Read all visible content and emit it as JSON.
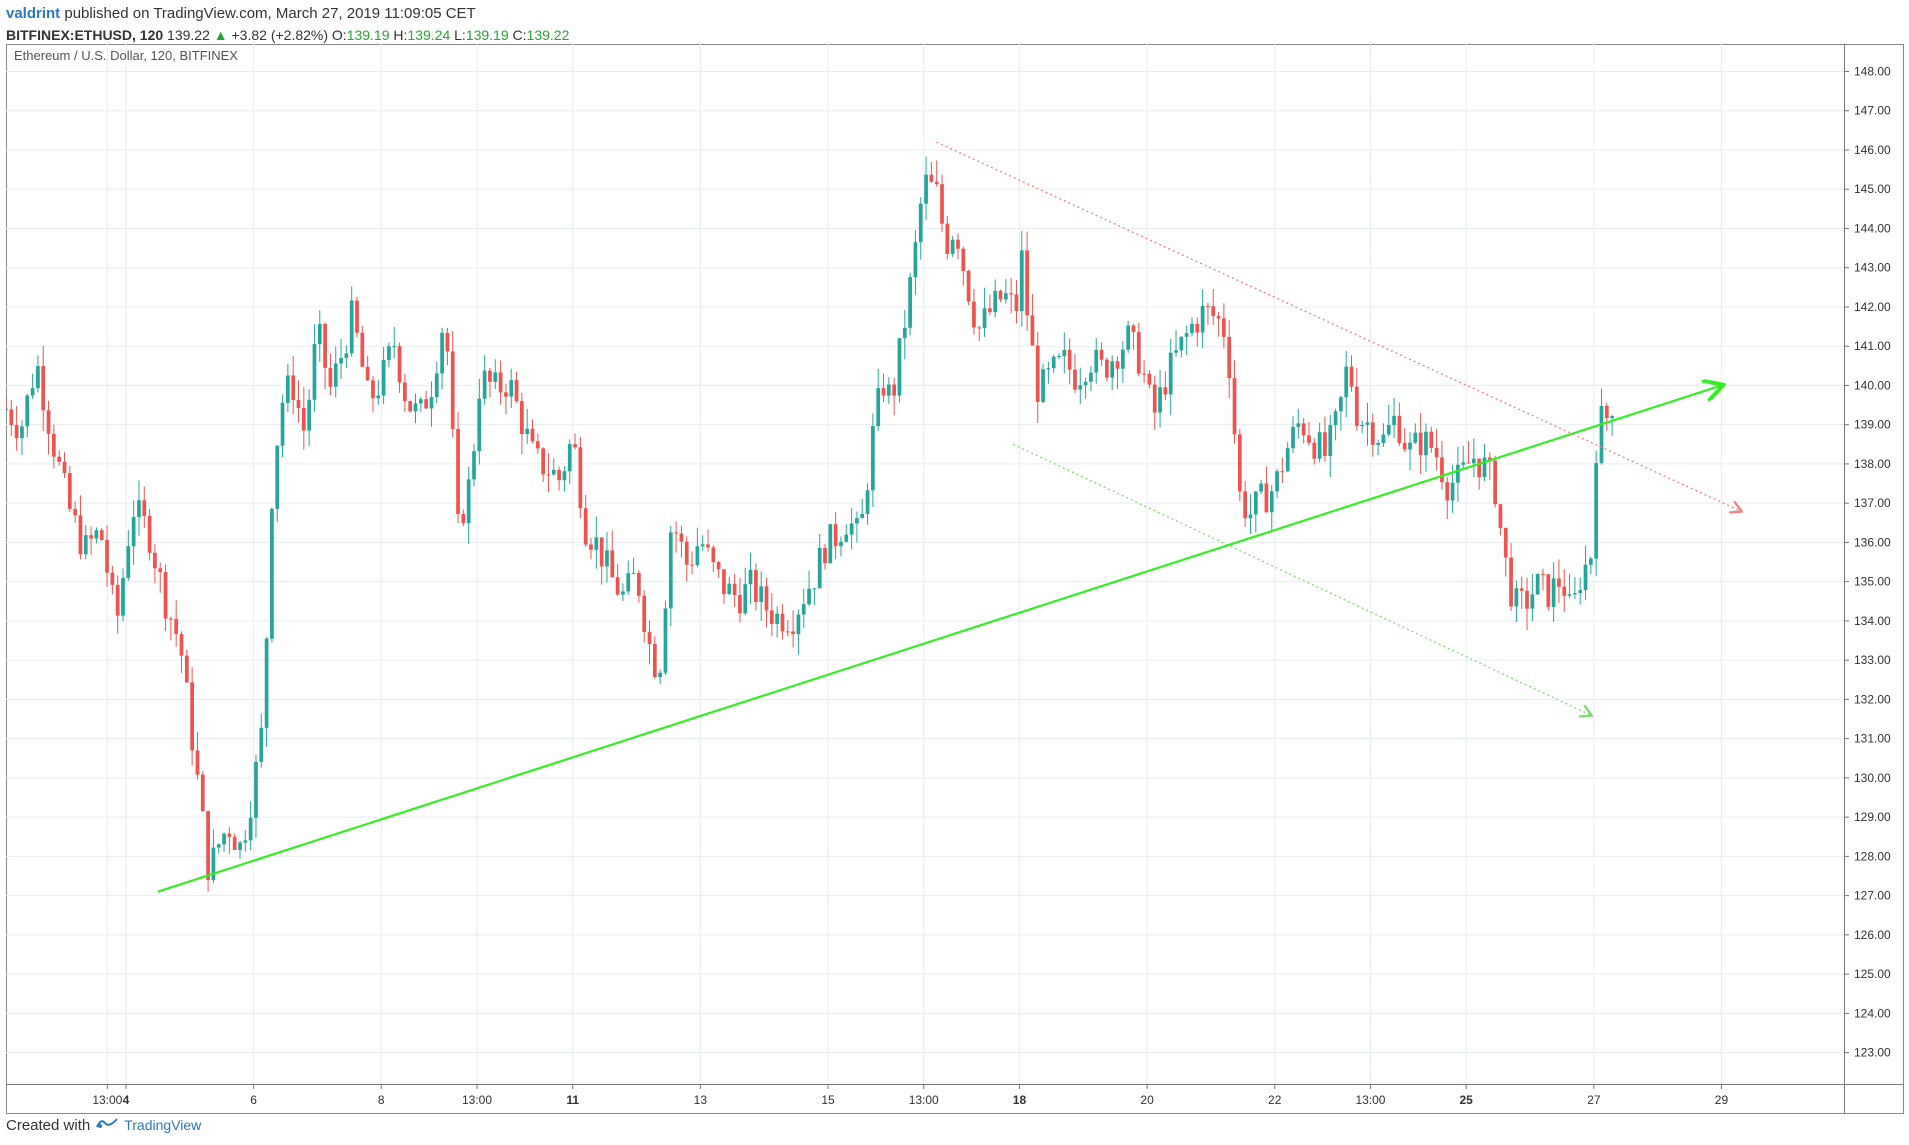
{
  "header": {
    "user": "valdrint",
    "published": "published on TradingView.com, March 27, 2019 11:09:05 CET",
    "symbol": "BITFINEX:ETHUSD, 120",
    "last": "139.22",
    "change_arrow": "▲",
    "change": "+3.82 (+2.82%)",
    "open_label": "O:",
    "open": "139.19",
    "high_label": "H:",
    "high": "139.24",
    "low_label": "L:",
    "low": "139.19",
    "close_label": "C:",
    "close": "139.22"
  },
  "chart_data": {
    "type": "candlestick",
    "title": "Ethereum / U.S. Dollar, 120, BITFINEX",
    "ylim": [
      122.2,
      148.7
    ],
    "y_ticks": [
      "123.00",
      "124.00",
      "125.00",
      "126.00",
      "127.00",
      "128.00",
      "129.00",
      "130.00",
      "131.00",
      "132.00",
      "133.00",
      "134.00",
      "135.00",
      "136.00",
      "137.00",
      "138.00",
      "139.00",
      "140.00",
      "141.00",
      "142.00",
      "143.00",
      "144.00",
      "145.00",
      "146.00",
      "147.00",
      "148.00"
    ],
    "x_ticks": [
      {
        "label": "13:00",
        "day": 2.708
      },
      {
        "label": "4",
        "day": 3.0,
        "bold": true
      },
      {
        "label": "6",
        "day": 5.0
      },
      {
        "label": "8",
        "day": 7.0
      },
      {
        "label": "13:00",
        "day": 8.5
      },
      {
        "label": "11",
        "day": 10.0,
        "bold": true
      },
      {
        "label": "13",
        "day": 12.0
      },
      {
        "label": "15",
        "day": 14.0
      },
      {
        "label": "13:00",
        "day": 15.5
      },
      {
        "label": "18",
        "day": 17.0,
        "bold": true
      },
      {
        "label": "20",
        "day": 19.0
      },
      {
        "label": "22",
        "day": 21.0
      },
      {
        "label": "13:00",
        "day": 22.5
      },
      {
        "label": "25",
        "day": 24.0,
        "bold": true
      },
      {
        "label": "27",
        "day": 26.0
      },
      {
        "label": "29",
        "day": 28.0
      }
    ],
    "xlim_days": [
      1.12,
      29.92
    ],
    "colors": {
      "up": "#26a69a",
      "down": "#ef5350",
      "trend": "#33ee22",
      "resistance": "#f08080",
      "support": "#7ddc6e",
      "grid": "#e8eef2",
      "axis": "#666666"
    },
    "waypoints": [
      [
        1.12,
        139.4
      ],
      [
        1.35,
        138.9
      ],
      [
        1.6,
        140.6
      ],
      [
        1.85,
        138.6
      ],
      [
        2.1,
        136.9
      ],
      [
        2.35,
        135.8
      ],
      [
        2.6,
        136.3
      ],
      [
        2.85,
        133.9
      ],
      [
        3.1,
        136.9
      ],
      [
        3.35,
        136.3
      ],
      [
        3.6,
        134.6
      ],
      [
        3.85,
        133.4
      ],
      [
        4.1,
        130.2
      ],
      [
        4.3,
        127.6
      ],
      [
        4.45,
        128.3
      ],
      [
        4.6,
        128.8
      ],
      [
        4.8,
        128.2
      ],
      [
        5.0,
        129.8
      ],
      [
        5.15,
        131.4
      ],
      [
        5.3,
        137.8
      ],
      [
        5.45,
        139.6
      ],
      [
        5.6,
        140.1
      ],
      [
        5.8,
        138.8
      ],
      [
        6.0,
        141.4
      ],
      [
        6.2,
        139.9
      ],
      [
        6.4,
        140.9
      ],
      [
        6.55,
        141.8
      ],
      [
        6.8,
        139.6
      ],
      [
        7.0,
        140.1
      ],
      [
        7.2,
        141.1
      ],
      [
        7.4,
        139.6
      ],
      [
        7.6,
        139.2
      ],
      [
        7.8,
        140.1
      ],
      [
        8.0,
        141.9
      ],
      [
        8.1,
        139.1
      ],
      [
        8.2,
        136.3
      ],
      [
        8.4,
        137.6
      ],
      [
        8.55,
        140.2
      ],
      [
        8.8,
        139.9
      ],
      [
        9.0,
        140.1
      ],
      [
        9.2,
        139.1
      ],
      [
        9.4,
        138.1
      ],
      [
        9.6,
        137.9
      ],
      [
        9.8,
        137.6
      ],
      [
        10.0,
        138.7
      ],
      [
        10.2,
        136.4
      ],
      [
        10.4,
        135.9
      ],
      [
        10.6,
        135.1
      ],
      [
        10.8,
        134.6
      ],
      [
        11.0,
        135.2
      ],
      [
        11.2,
        133.4
      ],
      [
        11.35,
        132.6
      ],
      [
        11.55,
        136.6
      ],
      [
        11.8,
        135.4
      ],
      [
        12.0,
        136.1
      ],
      [
        12.2,
        135.3
      ],
      [
        12.4,
        134.8
      ],
      [
        12.6,
        134.6
      ],
      [
        12.8,
        134.9
      ],
      [
        13.0,
        134.4
      ],
      [
        13.2,
        134.1
      ],
      [
        13.45,
        134.1
      ],
      [
        13.6,
        134.6
      ],
      [
        13.8,
        135.2
      ],
      [
        13.95,
        135.9
      ],
      [
        14.1,
        136.1
      ],
      [
        14.3,
        136.6
      ],
      [
        14.5,
        136.1
      ],
      [
        14.7,
        138.7
      ],
      [
        14.85,
        140.1
      ],
      [
        15.0,
        139.6
      ],
      [
        15.2,
        141.6
      ],
      [
        15.35,
        143.2
      ],
      [
        15.5,
        145.2
      ],
      [
        15.7,
        144.9
      ],
      [
        15.85,
        143.6
      ],
      [
        16.0,
        144.1
      ],
      [
        16.15,
        142.8
      ],
      [
        16.35,
        141.4
      ],
      [
        16.55,
        141.9
      ],
      [
        16.75,
        142.3
      ],
      [
        16.95,
        141.9
      ],
      [
        17.0,
        143.8
      ],
      [
        17.15,
        141.4
      ],
      [
        17.3,
        139.8
      ],
      [
        17.5,
        140.3
      ],
      [
        17.7,
        140.6
      ],
      [
        17.9,
        140.2
      ],
      [
        18.1,
        140.7
      ],
      [
        18.3,
        140.4
      ],
      [
        18.5,
        140.8
      ],
      [
        18.7,
        141.2
      ],
      [
        18.9,
        140.6
      ],
      [
        19.1,
        139.2
      ],
      [
        19.3,
        140.2
      ],
      [
        19.5,
        140.9
      ],
      [
        19.7,
        141.5
      ],
      [
        19.9,
        141.9
      ],
      [
        20.1,
        141.7
      ],
      [
        20.25,
        141.3
      ],
      [
        20.45,
        137.2
      ],
      [
        20.6,
        136.7
      ],
      [
        20.8,
        137.1
      ],
      [
        21.0,
        137.4
      ],
      [
        21.2,
        138.4
      ],
      [
        21.4,
        139.1
      ],
      [
        21.6,
        138.6
      ],
      [
        21.8,
        138.2
      ],
      [
        22.0,
        139.2
      ],
      [
        22.15,
        140.6
      ],
      [
        22.3,
        139.2
      ],
      [
        22.5,
        139.0
      ],
      [
        22.7,
        138.6
      ],
      [
        22.9,
        139.2
      ],
      [
        23.1,
        138.3
      ],
      [
        23.3,
        138.6
      ],
      [
        23.5,
        138.4
      ],
      [
        23.7,
        137.5
      ],
      [
        23.9,
        137.6
      ],
      [
        24.1,
        138.2
      ],
      [
        24.3,
        137.9
      ],
      [
        24.45,
        137.4
      ],
      [
        24.6,
        135.6
      ],
      [
        24.75,
        134.4
      ],
      [
        24.9,
        134.4
      ],
      [
        25.1,
        134.9
      ],
      [
        25.3,
        134.7
      ],
      [
        25.5,
        135.1
      ],
      [
        25.65,
        134.1
      ],
      [
        25.8,
        135.2
      ],
      [
        25.95,
        135.6
      ],
      [
        26.05,
        138.9
      ],
      [
        26.15,
        139.2
      ],
      [
        26.3,
        139.2
      ]
    ],
    "annotations": [
      {
        "type": "trend_up",
        "from": [
          3.5,
          127.1
        ],
        "to": [
          28.0,
          140.0
        ]
      },
      {
        "type": "resistance_dotted",
        "from": [
          15.7,
          146.2
        ],
        "to": [
          28.3,
          136.8
        ]
      },
      {
        "type": "support_dotted",
        "from": [
          16.9,
          138.5
        ],
        "to": [
          25.95,
          131.6
        ]
      }
    ]
  },
  "footer": {
    "created": "Created with",
    "brand": "TradingView"
  }
}
